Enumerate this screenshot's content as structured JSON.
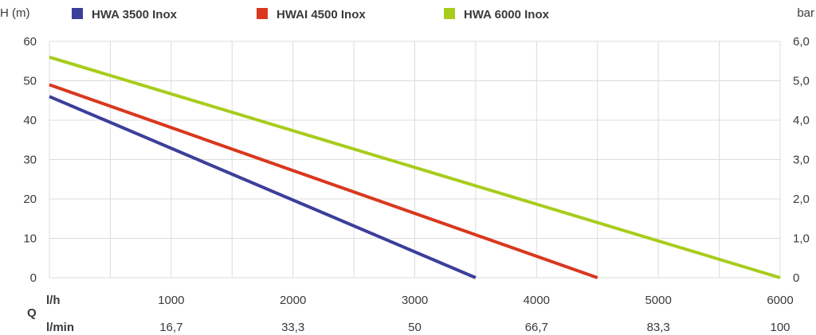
{
  "chart_data": {
    "type": "line",
    "left_axis_label": "H (m)",
    "right_axis_label": "bar",
    "q_label": "Q",
    "x_unit_lh": "l/h",
    "x_unit_lmin": "l/min",
    "xlim": [
      0,
      6000
    ],
    "ylim": [
      0,
      60
    ],
    "y_ticks": [
      "0",
      "10",
      "20",
      "30",
      "40",
      "50",
      "60"
    ],
    "y2_ticks": [
      "0",
      "1,0",
      "2,0",
      "3,0",
      "4,0",
      "5,0",
      "6,0"
    ],
    "x_ticks_lh": [
      "1000",
      "2000",
      "3000",
      "4000",
      "5000",
      "6000"
    ],
    "x_ticks_lmin": [
      "16,7",
      "33,3",
      "50",
      "66,7",
      "83,3",
      "100"
    ],
    "grid": true,
    "legend_position": "top",
    "series": [
      {
        "name": "HWA 3500 Inox",
        "color": "#3b3f9a",
        "points": [
          [
            0,
            46
          ],
          [
            3500,
            0
          ]
        ]
      },
      {
        "name": "HWAI 4500 Inox",
        "color": "#d9381e",
        "points": [
          [
            0,
            49
          ],
          [
            4500,
            0
          ]
        ]
      },
      {
        "name": "HWA 6000 Inox",
        "color": "#a8cc1c",
        "points": [
          [
            0,
            56
          ],
          [
            6000,
            0
          ]
        ]
      }
    ]
  }
}
